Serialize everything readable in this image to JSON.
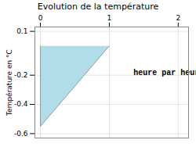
{
  "chart_data": {
    "type": "area",
    "title": "Evolution de la température",
    "ylabel": "Température en °C",
    "annotations": [
      {
        "text": "heure par heure",
        "x": 1.35,
        "y": -0.18
      }
    ],
    "x": [
      0,
      0,
      1
    ],
    "values": [
      0,
      -0.55,
      0
    ],
    "color": "#b0dde8",
    "xlim": [
      -0.08,
      2.15
    ],
    "ylim": [
      -0.63,
      0.13
    ],
    "xticks": [
      0,
      1,
      2
    ],
    "yticks": [
      0.1,
      -0.2,
      -0.4,
      -0.6
    ],
    "grid": true
  }
}
